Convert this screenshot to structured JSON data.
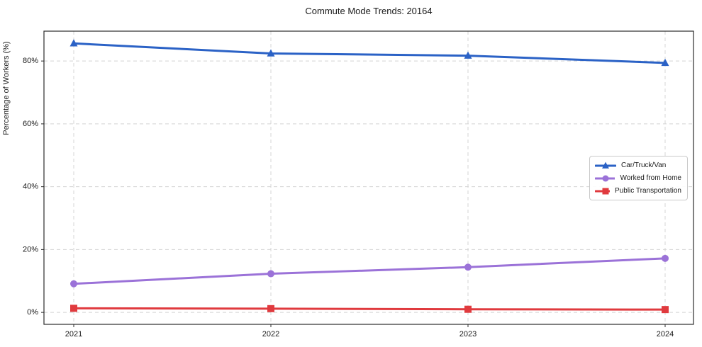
{
  "page": {
    "background": "#ffffff",
    "text_color": "#1a1a1a"
  },
  "chart_data": {
    "type": "line",
    "title": "Commute Mode Trends: 20164",
    "xlabel": "",
    "ylabel": "Percentage of Workers (%)",
    "categories": [
      "2021",
      "2022",
      "2023",
      "2024"
    ],
    "series": [
      {
        "name": "Car/Truck/Van",
        "color": "#2b62c6",
        "marker": "triangle",
        "values": [
          85.6,
          82.4,
          81.7,
          79.4
        ]
      },
      {
        "name": "Worked from Home",
        "color": "#9b72d8",
        "marker": "circle",
        "values": [
          9.1,
          12.3,
          14.4,
          17.2
        ]
      },
      {
        "name": "Public Transportation",
        "color": "#e03a3e",
        "marker": "square",
        "values": [
          1.3,
          1.2,
          1.0,
          0.9
        ]
      }
    ],
    "ylim": [
      -3.8,
      89.5
    ],
    "yticks": [
      0,
      20,
      40,
      60,
      80
    ],
    "ytick_labels": [
      "0%",
      "20%",
      "40%",
      "60%",
      "80%"
    ],
    "grid": "dashed",
    "grid_color": "#d4d4d4",
    "axis_color": "#2b2b2b",
    "tick_label_color": "#1a1a1a",
    "legend_position": "center-right",
    "legend_border_color": "#c9c9c9"
  }
}
